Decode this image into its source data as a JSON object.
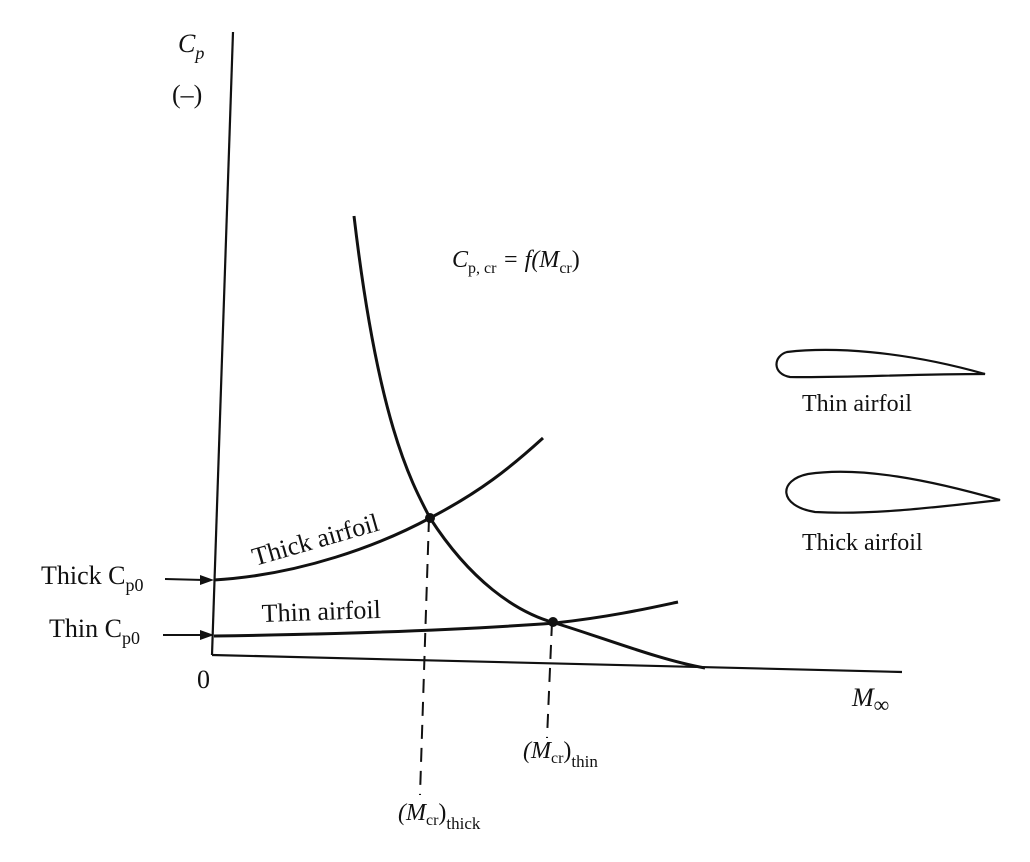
{
  "axes": {
    "y_symbol": "C",
    "y_sub": "p",
    "y_unit": "(–)",
    "x_symbol": "M",
    "x_sub": "∞",
    "origin": "0"
  },
  "curve_label": {
    "lhs": "C",
    "lhs_sub": "p, cr",
    "eq": " = f(M",
    "arg_sub": "cr",
    "close": ")"
  },
  "curves": {
    "thick": "Thick airfoil",
    "thin": "Thin airfoil"
  },
  "left_labels": {
    "thick_prefix": "Thick C",
    "thick_sub": "p0",
    "thin_prefix": "Thin C",
    "thin_sub": "p0"
  },
  "mcr_labels": {
    "thick_open": "(M",
    "thick_sub_inner": "cr",
    "thick_close": ")",
    "thick_sub": "thick",
    "thin_open": "(M",
    "thin_sub_inner": "cr",
    "thin_close": ")",
    "thin_sub": "thin"
  },
  "shapes": {
    "thin_label": "Thin airfoil",
    "thick_label": "Thick airfoil"
  }
}
